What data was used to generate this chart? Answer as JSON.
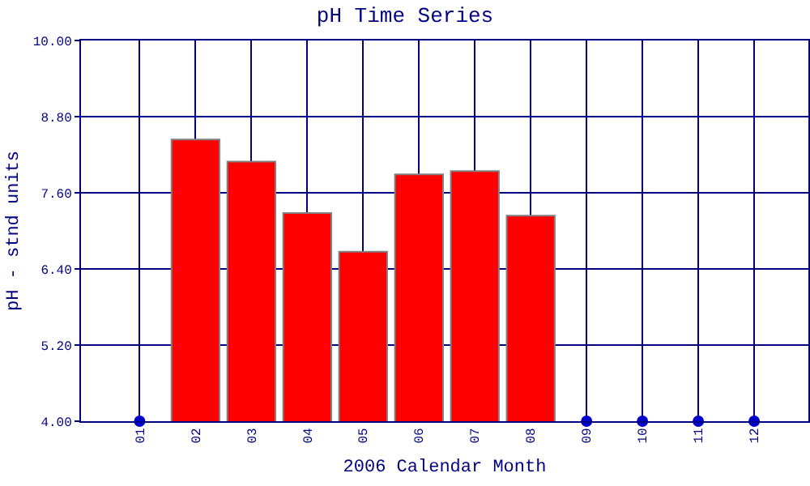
{
  "chart_data": {
    "type": "bar",
    "title": "pH Time Series",
    "xlabel": "2006 Calendar Month",
    "ylabel": "pH - stnd units",
    "categories": [
      "01",
      "02",
      "03",
      "04",
      "05",
      "06",
      "07",
      "08",
      "09",
      "10",
      "11",
      "12"
    ],
    "series": [
      {
        "color": "#ff0000",
        "values": [
          null,
          8.44,
          8.09,
          7.28,
          6.67,
          7.89,
          7.94,
          7.24,
          null,
          null,
          null,
          null
        ]
      },
      {
        "type": "scatter",
        "color": "#0000cc",
        "values": [
          4,
          null,
          null,
          null,
          null,
          null,
          null,
          null,
          4,
          4,
          4,
          4
        ]
      }
    ],
    "ylim": [
      4,
      10
    ],
    "yticks": [
      {
        "value": 4,
        "label": "4.00"
      },
      {
        "value": 5.2,
        "label": "5.20"
      },
      {
        "value": 6.4,
        "label": "6.40"
      },
      {
        "value": 7.6,
        "label": "7.60"
      },
      {
        "value": 8.8,
        "label": "8.80"
      },
      {
        "value": 10,
        "label": "10.00"
      }
    ],
    "grid": true,
    "marker": "circle"
  }
}
